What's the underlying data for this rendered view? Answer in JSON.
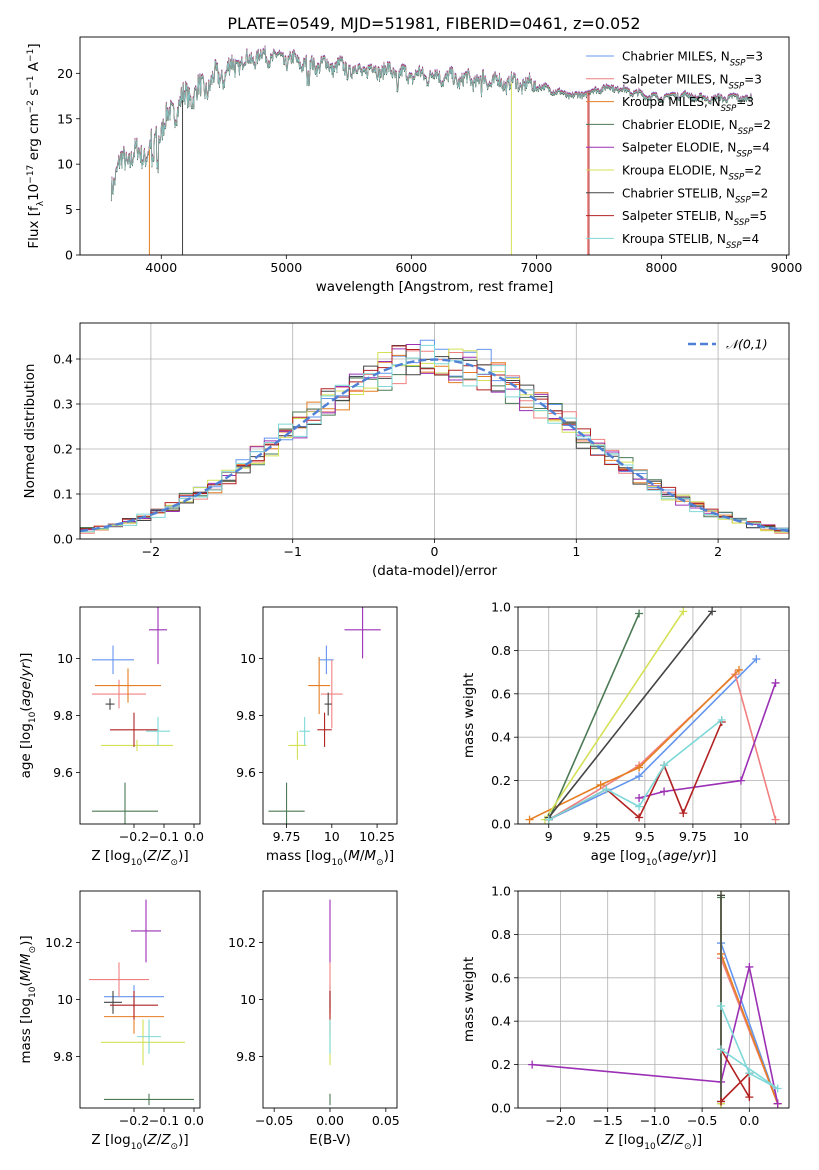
{
  "figure": {
    "title": "PLATE=0549, MJD=51981, FIBERID=0461, z=0.052"
  },
  "colors": {
    "series": [
      "#6495ed",
      "#f08080",
      "#e67e22",
      "#4b7a55",
      "#9b30b5",
      "#d4e157",
      "#444444",
      "#b22222",
      "#7fd8d8"
    ],
    "normal_curve": "#4f80d6",
    "grid": "#b0b0b0"
  },
  "chart_data": [
    {
      "id": "spectrum",
      "type": "line",
      "xlabel": "wavelength [Angstrom, rest frame]",
      "ylabel": "Flux [f_λ10^-17 erg cm^-2 s^-1 A^-1]",
      "xlim": [
        3350,
        9020
      ],
      "ylim": [
        0,
        24
      ],
      "xticks": [
        4000,
        5000,
        6000,
        7000,
        8000,
        9000
      ],
      "yticks": [
        0,
        5,
        10,
        15,
        20
      ],
      "grid": false,
      "legend_position": "top-right",
      "legend": [
        {
          "label": "Chabrier MILES, N_SSP=3"
        },
        {
          "label": "Salpeter MILES, N_SSP=3"
        },
        {
          "label": "Kroupa MILES, N_SSP=3"
        },
        {
          "label": "Chabrier ELODIE, N_SSP=2"
        },
        {
          "label": "Salpeter ELODIE, N_SSP=4"
        },
        {
          "label": "Kroupa ELODIE, N_SSP=2"
        },
        {
          "label": "Chabrier STELIB, N_SSP=2"
        },
        {
          "label": "Salpeter STELIB, N_SSP=5"
        },
        {
          "label": "Kroupa STELIB, N_SSP=4"
        }
      ],
      "continuum": [
        [
          3600,
          8
        ],
        [
          3700,
          10.5
        ],
        [
          3800,
          11
        ],
        [
          3900,
          11.5
        ],
        [
          4000,
          14
        ],
        [
          4100,
          16
        ],
        [
          4200,
          17.5
        ],
        [
          4300,
          18
        ],
        [
          4400,
          19
        ],
        [
          4500,
          20
        ],
        [
          4600,
          21
        ],
        [
          4700,
          21.5
        ],
        [
          4800,
          22
        ],
        [
          4900,
          21.8
        ],
        [
          5000,
          21.5
        ],
        [
          5100,
          21.3
        ],
        [
          5200,
          21
        ],
        [
          5300,
          21
        ],
        [
          5400,
          20.8
        ],
        [
          5500,
          20.5
        ],
        [
          5600,
          20.3
        ],
        [
          5700,
          20.5
        ],
        [
          5800,
          20.3
        ],
        [
          5900,
          20
        ],
        [
          6000,
          19.8
        ],
        [
          6100,
          19.8
        ],
        [
          6200,
          19.8
        ],
        [
          6300,
          19.5
        ],
        [
          6400,
          19.3
        ],
        [
          6500,
          19.3
        ],
        [
          6600,
          19.3
        ],
        [
          6700,
          19
        ],
        [
          6800,
          19
        ],
        [
          6900,
          18.8
        ],
        [
          7000,
          18.6
        ],
        [
          7100,
          18.3
        ],
        [
          7200,
          17.8
        ],
        [
          7300,
          17.5
        ],
        [
          7400,
          17.8
        ],
        [
          7500,
          18.3
        ],
        [
          7600,
          18.5
        ],
        [
          7700,
          18.2
        ],
        [
          7800,
          17.8
        ],
        [
          7900,
          17.5
        ],
        [
          8000,
          17.3
        ],
        [
          8100,
          17.6
        ],
        [
          8200,
          17.6
        ],
        [
          8300,
          17.3
        ],
        [
          8400,
          17.2
        ],
        [
          8500,
          17.3
        ],
        [
          8600,
          17.4
        ],
        [
          8700,
          17.2
        ]
      ]
    },
    {
      "id": "residual-histogram",
      "type": "histogram",
      "xlabel": "(data-model)/error",
      "ylabel": "Normed distribution",
      "xlim": [
        -2.5,
        2.5
      ],
      "ylim": [
        0,
        0.48
      ],
      "xticks": [
        -2,
        -1,
        0,
        1,
        2
      ],
      "yticks": [
        0.0,
        0.1,
        0.2,
        0.3,
        0.4
      ],
      "grid": true,
      "legend_position": "top-right",
      "legend": [
        {
          "label": "𝒩(0,1)"
        }
      ],
      "bin_width": 0.1,
      "curve": "normal pdf, mean 0, sigma 1"
    },
    {
      "id": "age-vs-z",
      "type": "errorbar",
      "xlabel": "Z [log10(Z/Z⊙)]",
      "ylabel": "age  [log10(age/yr)]",
      "xlim": [
        -0.38,
        0.02
      ],
      "ylim": [
        9.42,
        10.18
      ],
      "xticks": [
        -0.2,
        -0.1,
        0.0
      ],
      "xtick_labels": [
        "−0.2",
        "−0.1",
        "0.0"
      ],
      "yticks": [
        9.6,
        9.8,
        10.0
      ],
      "grid": false,
      "points": [
        {
          "x": -0.27,
          "y": 9.995,
          "xerr": 0.07,
          "yerr": 0.05
        },
        {
          "x": -0.25,
          "y": 9.875,
          "xerr": 0.09,
          "yerr": 0.05
        },
        {
          "x": -0.22,
          "y": 9.905,
          "xerr": 0.11,
          "yerr": 0.06
        },
        {
          "x": -0.23,
          "y": 9.465,
          "xerr": 0.11,
          "yerr": 0.1
        },
        {
          "x": -0.12,
          "y": 10.1,
          "xerr": 0.03,
          "yerr": 0.12
        },
        {
          "x": -0.19,
          "y": 9.695,
          "xerr": 0.12,
          "yerr": 0.02
        },
        {
          "x": -0.28,
          "y": 9.84,
          "xerr": 0.015,
          "yerr": 0.02
        },
        {
          "x": -0.2,
          "y": 9.75,
          "xerr": 0.08,
          "yerr": 0.06
        },
        {
          "x": -0.12,
          "y": 9.745,
          "xerr": 0.04,
          "yerr": 0.05
        }
      ]
    },
    {
      "id": "age-vs-mass",
      "type": "errorbar",
      "xlabel": "mass [log10(M/M⊙)]",
      "ylabel": "",
      "xlim": [
        9.62,
        10.36
      ],
      "ylim": [
        9.42,
        10.18
      ],
      "xticks": [
        9.75,
        10.0,
        10.25
      ],
      "yticks": [
        9.6,
        9.8,
        10.0
      ],
      "grid": false,
      "points": [
        {
          "x": 9.97,
          "y": 9.995,
          "xerr": 0.04,
          "yerr": 0.05
        },
        {
          "x": 10.0,
          "y": 9.875,
          "xerr": 0.06,
          "yerr": 0.12
        },
        {
          "x": 9.93,
          "y": 9.905,
          "xerr": 0.06,
          "yerr": 0.1
        },
        {
          "x": 9.75,
          "y": 9.465,
          "xerr": 0.1,
          "yerr": 0.1
        },
        {
          "x": 10.17,
          "y": 10.1,
          "xerr": 0.1,
          "yerr": 0.1
        },
        {
          "x": 9.81,
          "y": 9.695,
          "xerr": 0.05,
          "yerr": 0.05
        },
        {
          "x": 9.98,
          "y": 9.84,
          "xerr": 0.02,
          "yerr": 0.04
        },
        {
          "x": 9.96,
          "y": 9.75,
          "xerr": 0.04,
          "yerr": 0.06
        },
        {
          "x": 9.85,
          "y": 9.745,
          "xerr": 0.03,
          "yerr": 0.05
        }
      ]
    },
    {
      "id": "weight-vs-age",
      "type": "line",
      "xlabel": "age  [log10(age/yr)]",
      "ylabel": "mass weight",
      "xlim": [
        8.84,
        10.25
      ],
      "ylim": [
        0,
        1
      ],
      "xticks": [
        9.0,
        9.25,
        9.5,
        9.75,
        10.0
      ],
      "yticks": [
        0.0,
        0.2,
        0.4,
        0.6,
        0.8,
        1.0
      ],
      "grid": true,
      "series": [
        {
          "x": [
            9.0,
            9.47,
            10.08
          ],
          "y": [
            0.02,
            0.22,
            0.76
          ]
        },
        {
          "x": [
            9.0,
            9.47,
            9.97,
            10.18
          ],
          "y": [
            0.02,
            0.27,
            0.69,
            0.02
          ]
        },
        {
          "x": [
            8.9,
            9.27,
            9.47,
            9.99
          ],
          "y": [
            0.02,
            0.18,
            0.26,
            0.71
          ]
        },
        {
          "x": [
            9.0,
            9.47
          ],
          "y": [
            0.02,
            0.97
          ]
        },
        {
          "x": [
            9.47,
            9.6,
            10.0,
            10.18
          ],
          "y": [
            0.12,
            0.15,
            0.2,
            0.65
          ]
        },
        {
          "x": [
            8.98,
            9.7
          ],
          "y": [
            0.02,
            0.98
          ]
        },
        {
          "x": [
            9.0,
            9.85
          ],
          "y": [
            0.03,
            0.98
          ]
        },
        {
          "x": [
            9.0,
            9.3,
            9.47,
            9.6,
            9.7,
            9.9
          ],
          "y": [
            0.02,
            0.16,
            0.03,
            0.27,
            0.05,
            0.47
          ]
        },
        {
          "x": [
            9.0,
            9.3,
            9.47,
            9.6,
            9.9
          ],
          "y": [
            0.02,
            0.16,
            0.08,
            0.27,
            0.48
          ]
        }
      ]
    },
    {
      "id": "mass-vs-z",
      "type": "errorbar",
      "xlabel": "Z [log10(Z/Z⊙)]",
      "ylabel": "mass [log10(M/M⊙)]",
      "xlim": [
        -0.38,
        0.02
      ],
      "ylim": [
        9.62,
        10.38
      ],
      "xticks": [
        -0.2,
        -0.1,
        0.0
      ],
      "xtick_labels": [
        "−0.2",
        "−0.1",
        "0.0"
      ],
      "yticks": [
        9.8,
        10.0,
        10.2
      ],
      "grid": false,
      "points": [
        {
          "x": -0.2,
          "y": 10.01,
          "xerr": 0.1,
          "yerr": 0.04
        },
        {
          "x": -0.25,
          "y": 10.07,
          "xerr": 0.1,
          "yerr": 0.06
        },
        {
          "x": -0.2,
          "y": 9.94,
          "xerr": 0.1,
          "yerr": 0.06
        },
        {
          "x": -0.15,
          "y": 9.65,
          "xerr": 0.15,
          "yerr": 0.02
        },
        {
          "x": -0.16,
          "y": 10.24,
          "xerr": 0.05,
          "yerr": 0.11
        },
        {
          "x": -0.17,
          "y": 9.85,
          "xerr": 0.14,
          "yerr": 0.08
        },
        {
          "x": -0.27,
          "y": 9.99,
          "xerr": 0.03,
          "yerr": 0.04
        },
        {
          "x": -0.2,
          "y": 9.98,
          "xerr": 0.08,
          "yerr": 0.05
        },
        {
          "x": -0.15,
          "y": 9.87,
          "xerr": 0.04,
          "yerr": 0.06
        }
      ]
    },
    {
      "id": "mass-vs-ebv",
      "type": "errorbar",
      "xlabel": "E(B-V)",
      "ylabel": "",
      "xlim": [
        -0.06,
        0.06
      ],
      "ylim": [
        9.62,
        10.38
      ],
      "xticks": [
        -0.05,
        0.0,
        0.05
      ],
      "xtick_labels": [
        "−0.05",
        "0.00",
        "0.05"
      ],
      "yticks": [
        9.8,
        10.0,
        10.2
      ],
      "grid": false,
      "points": [
        {
          "x": 0.0,
          "y": 10.01,
          "xerr": 0,
          "yerr": 0.04
        },
        {
          "x": 0.0,
          "y": 10.07,
          "xerr": 0,
          "yerr": 0.06
        },
        {
          "x": 0.0,
          "y": 9.94,
          "xerr": 0,
          "yerr": 0.06
        },
        {
          "x": 0.0,
          "y": 9.65,
          "xerr": 0,
          "yerr": 0.02
        },
        {
          "x": 0.0,
          "y": 10.24,
          "xerr": 0,
          "yerr": 0.11
        },
        {
          "x": 0.0,
          "y": 9.85,
          "xerr": 0,
          "yerr": 0.08
        },
        {
          "x": 0.0,
          "y": 9.99,
          "xerr": 0,
          "yerr": 0.04
        },
        {
          "x": 0.0,
          "y": 9.98,
          "xerr": 0,
          "yerr": 0.05
        },
        {
          "x": 0.0,
          "y": 9.87,
          "xerr": 0,
          "yerr": 0.06
        }
      ]
    },
    {
      "id": "weight-vs-z",
      "type": "line",
      "xlabel": "Z [log10(Z/Z⊙)]",
      "ylabel": "mass weight",
      "xlim": [
        -2.45,
        0.42
      ],
      "ylim": [
        0,
        1
      ],
      "xticks": [
        -2.0,
        -1.5,
        -1.0,
        -0.5,
        0.0
      ],
      "xtick_labels": [
        "−2.0",
        "−1.5",
        "−1.0",
        "−0.5",
        "0.0"
      ],
      "yticks": [
        0.0,
        0.2,
        0.4,
        0.6,
        0.8,
        1.0
      ],
      "grid": true,
      "series": [
        {
          "x": [
            -0.3,
            0.3
          ],
          "y": [
            0.76,
            0.02
          ]
        },
        {
          "x": [
            -0.3,
            0.3
          ],
          "y": [
            0.69,
            0.02
          ]
        },
        {
          "x": [
            -0.3,
            0.3
          ],
          "y": [
            0.71,
            0.02
          ]
        },
        {
          "x": [
            -0.3,
            -0.3
          ],
          "y": [
            0.02,
            0.97
          ]
        },
        {
          "x": [
            -2.3,
            -0.3,
            0.0,
            0.3
          ],
          "y": [
            0.2,
            0.12,
            0.65,
            0.02
          ]
        },
        {
          "x": [
            -0.3,
            -0.3
          ],
          "y": [
            0.02,
            0.98
          ]
        },
        {
          "x": [
            -0.3,
            -0.3
          ],
          "y": [
            0.03,
            0.98
          ]
        },
        {
          "x": [
            -0.3,
            0.0,
            0.0,
            -0.3
          ],
          "y": [
            0.03,
            0.16,
            0.05,
            0.27
          ]
        },
        {
          "x": [
            -0.3,
            0.0,
            0.3,
            -0.3
          ],
          "y": [
            0.47,
            0.16,
            0.09,
            0.27
          ]
        }
      ]
    }
  ]
}
